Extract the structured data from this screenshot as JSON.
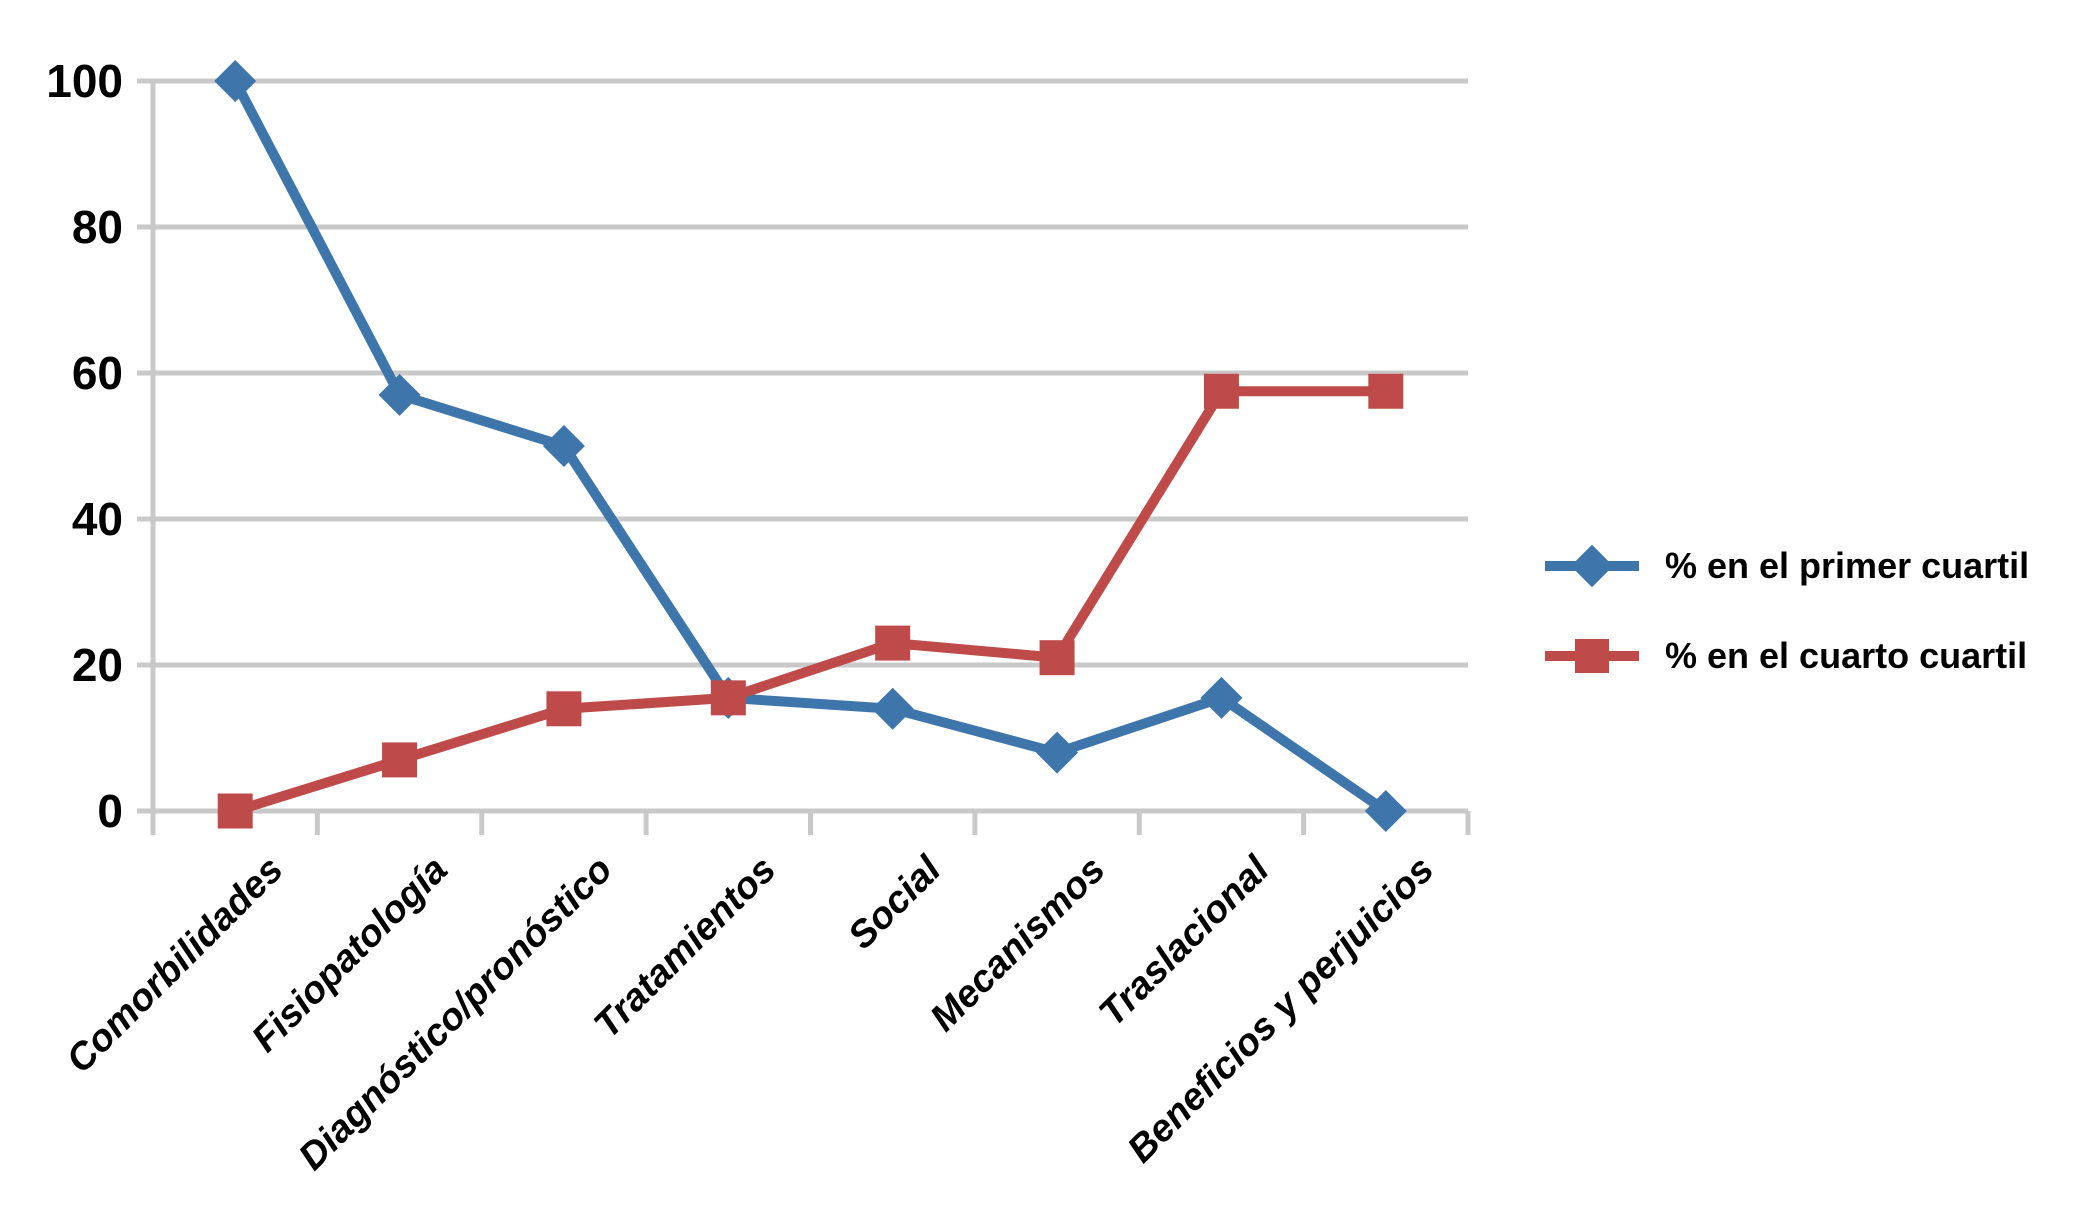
{
  "page": {
    "background": "#ffffff"
  },
  "chart_data": {
    "type": "line",
    "title": "",
    "xlabel": "",
    "ylabel": "",
    "categories": [
      "Comorbilidades",
      "Fisiopatología",
      "Diagnóstico/pronóstico",
      "Tratamientos",
      "Social",
      "Mecanismos",
      "Traslacional",
      "Beneficios y perjuicios"
    ],
    "series": [
      {
        "name": "% en el primer cuartil",
        "marker": "diamond",
        "color": "#3E76AC",
        "values": [
          100,
          57,
          50,
          15.5,
          14,
          8,
          15.5,
          0
        ]
      },
      {
        "name": "% en el cuarto cuartil",
        "marker": "square",
        "color": "#BE4B49",
        "values": [
          0,
          7,
          14,
          15.5,
          23,
          21,
          57.5,
          57.5
        ]
      }
    ],
    "y_ticks": [
      0,
      20,
      40,
      60,
      80,
      100
    ],
    "ylim": [
      0,
      100
    ],
    "grid": "horizontal",
    "legend_position": "right",
    "gridline_color": "#C9C9C9",
    "text_color": "#000000"
  }
}
